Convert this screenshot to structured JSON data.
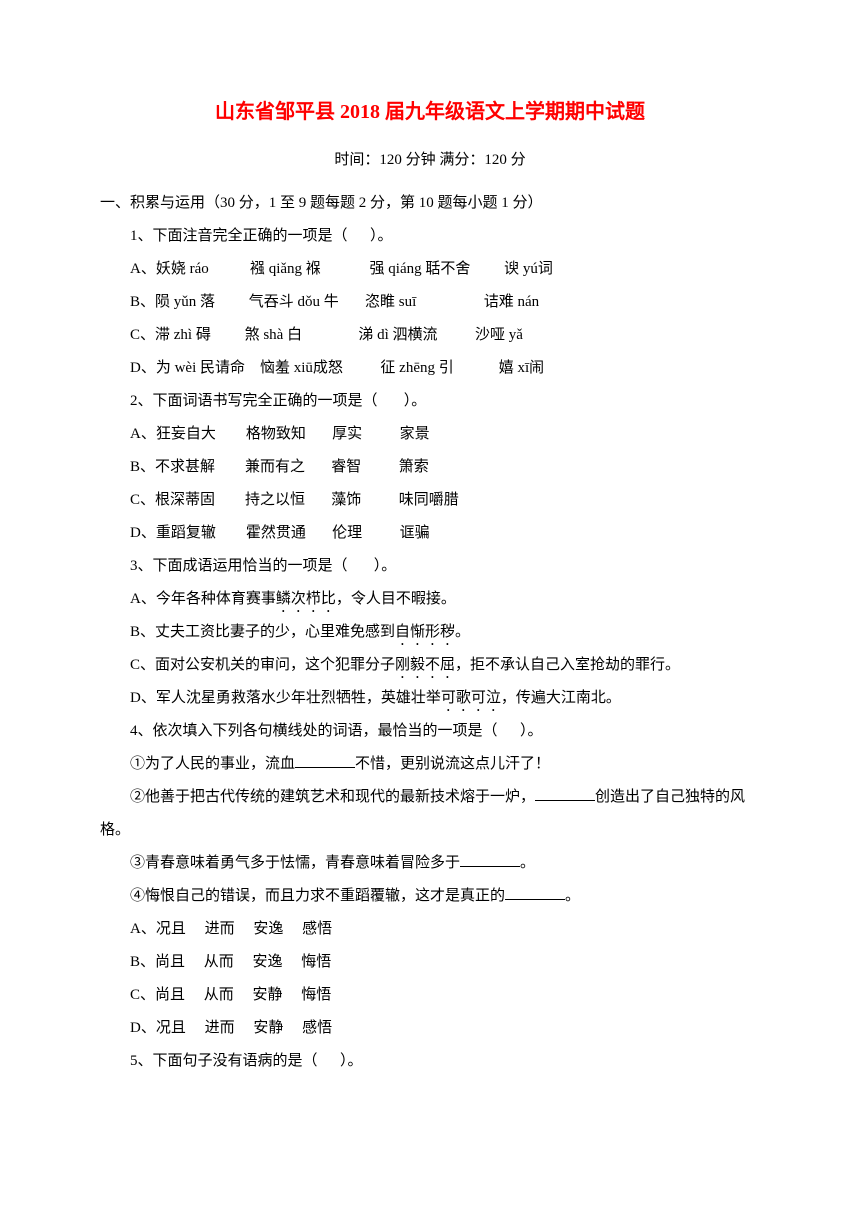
{
  "title": "山东省邹平县 2018 届九年级语文上学期期中试题",
  "subtitle": "时间：120 分钟      满分：120 分",
  "section1_header": "一、积累与运用（30 分，1 至 9 题每题 2 分，第 10 题每小题 1 分）",
  "q1": {
    "stem": "1、下面注音完全正确的一项是（      ）。",
    "a": "A、妖娆 ráo           襁 qiǎng 褓             强 qiáng 聒不舍         谀 yú词",
    "b": "B、陨 yǔn 落         气吞斗 dǒu 牛       恣睢 suī                  诘难 nán",
    "c": "C、滞 zhì 碍         煞 shà 白               涕 dì 泗横流          沙哑 yǎ",
    "d": "D、为 wèi 民请命    恼羞 xiū成怒          征 zhēng 引            嬉 xī闹"
  },
  "q2": {
    "stem": "2、下面词语书写完全正确的一项是（       ）。",
    "a": "A、狂妄自大        格物致知       厚实          家景",
    "b": "B、不求甚解        兼而有之       睿智          箫索",
    "c": "C、根深蒂固        持之以恒       藻饰          味同嚼腊",
    "d": "D、重蹈复辙        霍然贯通       伦理          诓骗"
  },
  "q3": {
    "stem": "3、下面成语运用恰当的一项是（       ）。",
    "a_pre": "A、今年各种体育赛事",
    "a_em": "鳞次栉比",
    "a_post": "，令人目不暇接。",
    "b_pre": "B、丈夫工资比妻子的少，心里难免感到",
    "b_em": "自惭形秽",
    "b_post": "。",
    "c_pre": "C、面对公安机关的审问，这个犯罪分子",
    "c_em": "刚毅不屈",
    "c_post": "，拒不承认自己入室抢劫的罪行。",
    "d_pre": "D、军人沈星勇救落水少年壮烈牺牲，英雄壮举",
    "d_em": "可歌可泣",
    "d_post": "，传遍大江南北。"
  },
  "q4": {
    "stem": "4、依次填入下列各句横线处的词语，最恰当的一项是（      ）。",
    "s1_pre": "①为了人民的事业，流血",
    "s1_post": "不惜，更别说流这点儿汗了！",
    "s2_pre": "②他善于把古代传统的建筑艺术和现代的最新技术熔于一炉，",
    "s2_post1": "创造出了自己独特的风",
    "s2_post2": "格。",
    "s3_pre": "③青春意味着勇气多于怯懦，青春意味着冒险多于",
    "s3_post": "。",
    "s4_pre": "④悔恨自己的错误，而且力求不重蹈覆辙，这才是真正的",
    "s4_post": "。",
    "a": "A、况且     进而     安逸     感悟",
    "b": "B、尚且     从而     安逸     悔悟",
    "c": "C、尚且     从而     安静     悔悟",
    "d": "D、况且     进而     安静     感悟"
  },
  "q5": {
    "stem": "5、下面句子没有语病的是（      ）。"
  }
}
